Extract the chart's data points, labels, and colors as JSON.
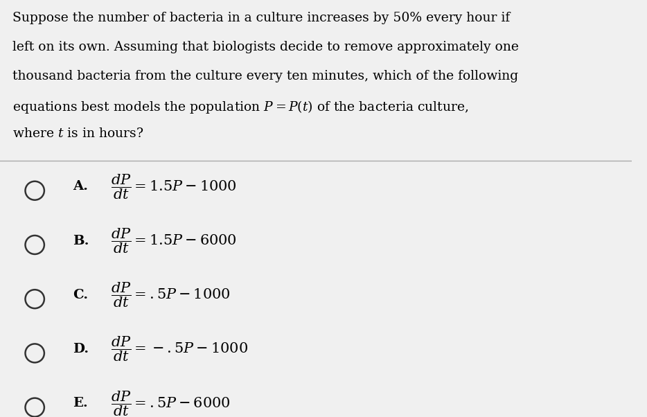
{
  "background_color": "#f0f0f0",
  "text_color": "#000000",
  "question_lines": [
    "Suppose the number of bacteria in a culture increases by 50% every hour if",
    "left on its own. Assuming that biologists decide to remove approximately one",
    "thousand bacteria from the culture every ten minutes, which of the following",
    "equations best models the population $P = P(t)$ of the bacteria culture,",
    "where $t$ is in hours?"
  ],
  "options": [
    {
      "label": "A.",
      "equation": "$\\dfrac{dP}{dt} = 1.5P - 1000$"
    },
    {
      "label": "B.",
      "equation": "$\\dfrac{dP}{dt} = 1.5P - 6000$"
    },
    {
      "label": "C.",
      "equation": "$\\dfrac{dP}{dt} = .5P - 1000$"
    },
    {
      "label": "D.",
      "equation": "$\\dfrac{dP}{dt} = -.5P - 1000$"
    },
    {
      "label": "E.",
      "equation": "$\\dfrac{dP}{dt} = .5P - 6000$"
    }
  ],
  "fig_width": 9.34,
  "fig_height": 6.02,
  "dpi": 100,
  "separator_color": "#aaaaaa",
  "circle_edge_color": "#333333"
}
